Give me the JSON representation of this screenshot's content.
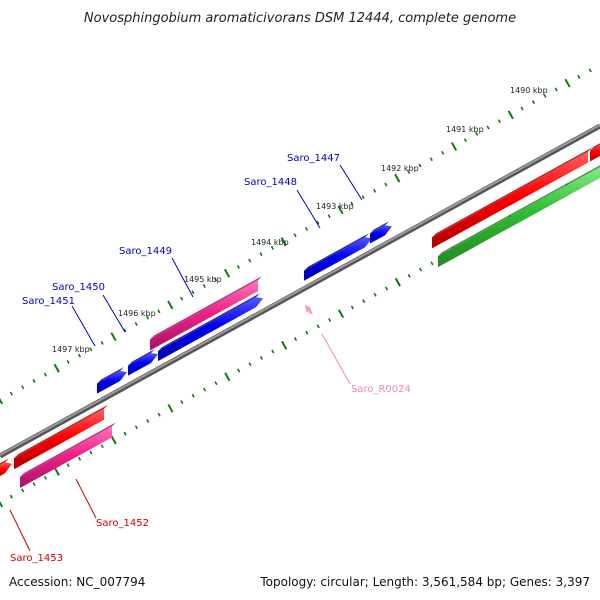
{
  "title": "Novosphingobium aromaticivorans DSM 12444, complete genome",
  "footer": {
    "accession": "Accession: NC_007794",
    "topology": "Topology: circular; Length: 3,561,584 bp; Genes: 3,397"
  },
  "kbp_labels": [
    "1490 kbp",
    "1491 kbp",
    "1492 kbp",
    "1493 kbp",
    "1494 kbp",
    "1495 kbp",
    "1496 kbp",
    "1497 kbp"
  ],
  "gene_labels": [
    {
      "text": "Saro_1447",
      "color": "#0000cc"
    },
    {
      "text": "Saro_1448",
      "color": "#0000cc"
    },
    {
      "text": "Saro_1449",
      "color": "#0000cc"
    },
    {
      "text": "Saro_1450",
      "color": "#0000cc"
    },
    {
      "text": "Saro_1451",
      "color": "#0000cc"
    },
    {
      "text": "Saro_R0024",
      "color": "#ee88bb"
    },
    {
      "text": "Saro_1452",
      "color": "#cc0000"
    },
    {
      "text": "Saro_1453",
      "color": "#cc0000"
    }
  ],
  "colors": {
    "backbone": "#777777",
    "tick": "#117711",
    "gene_red": "#ee0000",
    "gene_pink": "#ee2288",
    "gene_blue": "#0000ee",
    "gene_green": "#33bb33",
    "rna_pink": "#ff99cc"
  }
}
